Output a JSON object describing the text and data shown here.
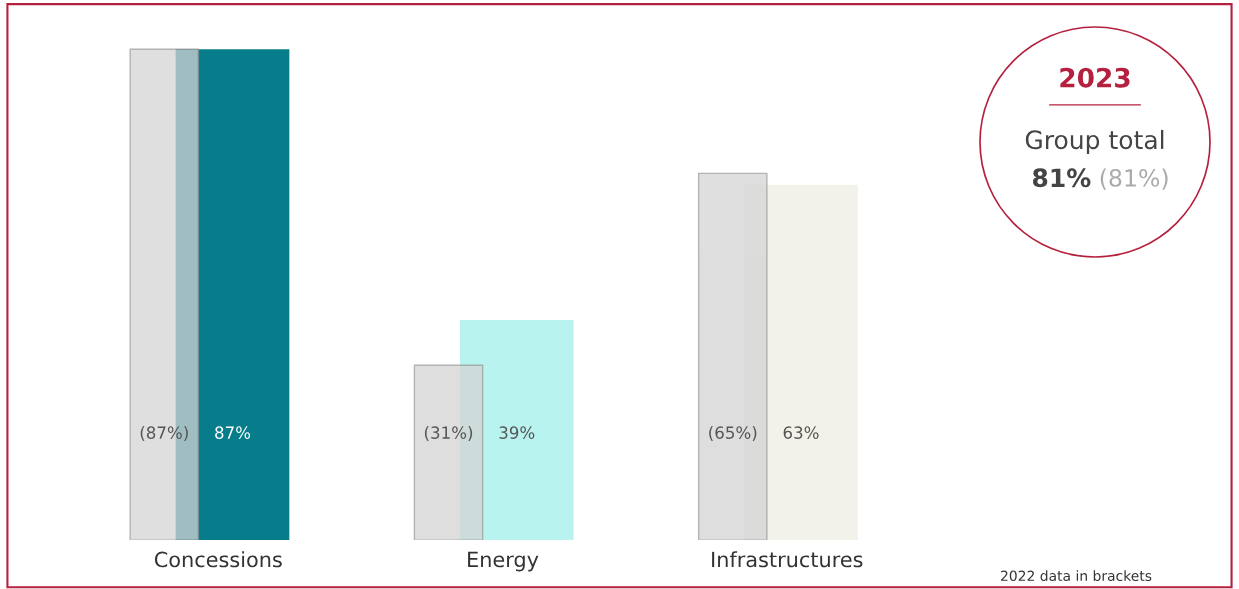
{
  "chart_data": {
    "type": "bar",
    "categories": [
      "Concessions",
      "Energy",
      "Infrastructures"
    ],
    "series": [
      {
        "color": "#d4d4d4",
        "values": [
          87,
          31,
          65
        ],
        "value_labels": [
          "(87%)",
          "(31%)",
          "(65%)"
        ]
      },
      {
        "colors": [
          "#077d8b",
          "#b9f3ef",
          "#f3f2ea"
        ],
        "values": [
          87,
          39,
          63
        ],
        "value_labels": [
          "87%",
          "39%",
          "63%"
        ]
      }
    ],
    "annotations": [
      "2023",
      "Group total",
      "81%",
      "(81%)",
      "2022 data in brackets"
    ],
    "grid": false
  }
}
